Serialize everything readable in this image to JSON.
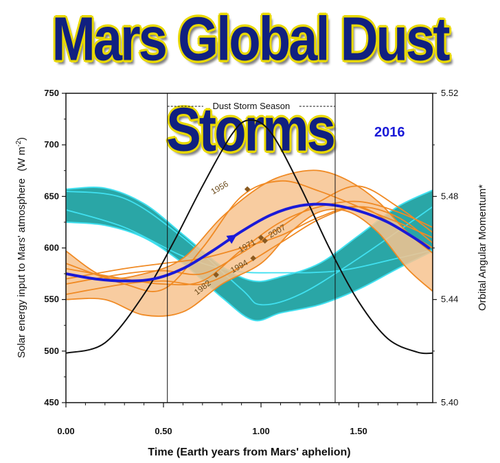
{
  "header": {
    "title": "Mars Global Dust Storms"
  },
  "chart_data": {
    "type": "line",
    "xlabel": "Time (Earth years from Mars' aphelion)",
    "ylabel_left": "Solar energy input to Mars' atmosphere",
    "ylabel_left_unit": "(W m",
    "ylabel_left_sup": "-2",
    "ylabel_right": "Orbital Angular Momentum*",
    "xlim": [
      0,
      1.88
    ],
    "ylim_left": [
      450,
      750
    ],
    "ylim_right": [
      5.4,
      5.52
    ],
    "x_ticks": [
      "0.00",
      "0.50",
      "1.00",
      "1.50"
    ],
    "y_ticks_left": [
      "450",
      "500",
      "550",
      "600",
      "650",
      "700",
      "750"
    ],
    "y_ticks_right": [
      "5.40",
      "5.44",
      "5.48",
      "5.52"
    ],
    "annotation": "Dust Storm Season",
    "season_range": [
      0.52,
      1.38
    ],
    "highlight_label": "2016",
    "colors": {
      "solar": "#111111",
      "teal": "#1fa1a1",
      "cyan": "#40e0f0",
      "orange": "#f08a24",
      "orange_fill": "#f7c38f",
      "highlight": "#1a1ad8",
      "marker": "#8a5a20"
    },
    "solar_energy": {
      "x": [
        0,
        0.2,
        0.4,
        0.55,
        0.7,
        0.85,
        0.94,
        1.05,
        1.2,
        1.35,
        1.5,
        1.65,
        1.8,
        1.88
      ],
      "y": [
        498,
        508,
        555,
        605,
        660,
        710,
        724,
        712,
        660,
        600,
        548,
        512,
        499,
        498
      ]
    },
    "teal_band": {
      "x": [
        0,
        0.2,
        0.4,
        0.6,
        0.8,
        0.96,
        1.1,
        1.3,
        1.5,
        1.7,
        1.88
      ],
      "upper": [
        657,
        658,
        643,
        613,
        582,
        568,
        572,
        585,
        612,
        640,
        656
      ],
      "lower": [
        625,
        622,
        610,
        585,
        552,
        530,
        537,
        545,
        560,
        580,
        597
      ]
    },
    "cyan_lines": [
      {
        "x": [
          0,
          0.3,
          0.6,
          0.9,
          1.0,
          1.2,
          1.5,
          1.88
        ],
        "y": [
          655,
          648,
          610,
          560,
          545,
          555,
          590,
          640
        ]
      },
      {
        "x": [
          0,
          0.3,
          0.6,
          0.85,
          1.1,
          1.4,
          1.7,
          1.88
        ],
        "y": [
          637,
          620,
          592,
          578,
          576,
          578,
          590,
          598
        ]
      }
    ],
    "orange_band": {
      "x": [
        0,
        0.2,
        0.4,
        0.6,
        0.8,
        1.0,
        1.15,
        1.3,
        1.45,
        1.6,
        1.75,
        1.88
      ],
      "upper": [
        597,
        572,
        575,
        590,
        630,
        660,
        672,
        675,
        665,
        645,
        615,
        595
      ],
      "lower": [
        550,
        550,
        535,
        538,
        565,
        585,
        615,
        635,
        635,
        615,
        580,
        558
      ]
    },
    "orange_lines": [
      {
        "label": "1956",
        "x": [
          0,
          0.3,
          0.5,
          0.7,
          0.9,
          1.1,
          1.3,
          1.5,
          1.7,
          1.88
        ],
        "y": [
          585,
          565,
          560,
          600,
          650,
          665,
          655,
          640,
          625,
          610
        ]
      },
      {
        "label": "1982",
        "x": [
          0,
          0.3,
          0.5,
          0.7,
          0.9,
          1.1,
          1.3,
          1.5,
          1.7,
          1.88
        ],
        "y": [
          580,
          570,
          565,
          568,
          598,
          625,
          640,
          645,
          635,
          620
        ]
      },
      {
        "label": "1971",
        "x": [
          0,
          0.3,
          0.5,
          0.7,
          0.9,
          1.1,
          1.3,
          1.5,
          1.7,
          1.88
        ],
        "y": [
          565,
          575,
          578,
          575,
          595,
          620,
          645,
          660,
          640,
          615
        ]
      },
      {
        "label": "1994",
        "x": [
          0,
          0.3,
          0.5,
          0.7,
          0.9,
          1.1,
          1.3,
          1.5,
          1.7,
          1.88
        ],
        "y": [
          555,
          565,
          568,
          565,
          582,
          605,
          628,
          640,
          630,
          605
        ]
      },
      {
        "label": "2007",
        "x": [
          0,
          0.3,
          0.5,
          0.7,
          0.9,
          1.1,
          1.3,
          1.5,
          1.7,
          1.88
        ],
        "y": [
          570,
          580,
          585,
          590,
          600,
          612,
          630,
          640,
          620,
          600
        ]
      }
    ],
    "year_markers": [
      {
        "label": "1956",
        "x": 0.93,
        "y": 657
      },
      {
        "label": "1971",
        "x": 1.0,
        "y": 610
      },
      {
        "label": "2007",
        "x": 1.02,
        "y": 607
      },
      {
        "label": "1994",
        "x": 0.96,
        "y": 590
      },
      {
        "label": "1982",
        "x": 0.77,
        "y": 574
      }
    ],
    "highlight_2016": {
      "x": [
        0,
        0.15,
        0.3,
        0.45,
        0.6,
        0.75,
        0.9,
        1.05,
        1.2,
        1.35,
        1.5,
        1.65,
        1.8,
        1.86
      ],
      "y": [
        575,
        570,
        568,
        570,
        580,
        597,
        616,
        632,
        641,
        642,
        636,
        625,
        608,
        600
      ]
    }
  }
}
